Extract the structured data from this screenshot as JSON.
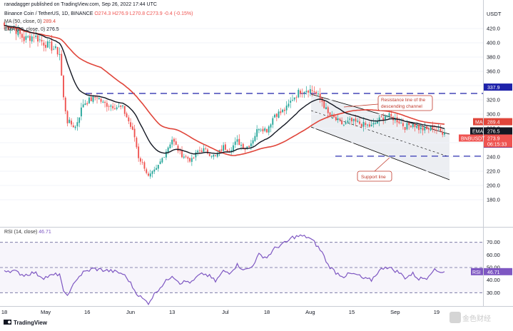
{
  "header": {
    "author_time": "ranadagger published on TradingView.com, Sep 26, 2022 17:44 UTC",
    "symbol": "Binance Coin / TetherUS, 1D, BINANCE",
    "ohlc": "O274.3 H276.9 L270.8 C273.9 -0.4 (-0.15%)",
    "ma_label": "MA (50, close, 0)",
    "ma_value": "289.4",
    "ema_label": "EMA (20, close, 0)",
    "ema_value": "276.5",
    "rsi_label": "RSI (14, close)",
    "rsi_value": "46.71"
  },
  "footer": {
    "brand": "TradingView",
    "watermark": "金色财经"
  },
  "colors": {
    "up": "#26a69a",
    "down": "#ef5350",
    "ma": "#e0453a",
    "ema": "#131722",
    "rsi": "#7e57c2",
    "level": "#1e22aa",
    "channel": "#000000"
  },
  "chart_data": [
    {
      "type": "candlestick",
      "title": "",
      "ylabel": "USDT",
      "ylim": [
        160,
        440
      ],
      "yticks": [
        180.0,
        200.0,
        220.0,
        240.0,
        260.0,
        280.0,
        300.0,
        320.0,
        340.0,
        360.0,
        380.0,
        400.0,
        420.0
      ],
      "xtick_labels": [
        "18",
        "May",
        "16",
        "Jun",
        "13",
        "Jul",
        "18",
        "Aug",
        "15",
        "Sep",
        "19"
      ],
      "levels": [
        {
          "label": "337.9",
          "value": 337.9
        },
        {
          "label": "258.0",
          "value": 258.0
        }
      ],
      "price_tags": [
        {
          "name": "MA",
          "value": 289.4,
          "text": "289.4"
        },
        {
          "name": "EMA",
          "value": 276.5,
          "text": "276.5"
        },
        {
          "name": "BNBUSDT",
          "value": 273.9,
          "text": "273.9",
          "sub": "06:15:33"
        }
      ],
      "annotations": [
        {
          "text": "Resistance line of the descending channel"
        },
        {
          "text": "Support line"
        }
      ],
      "series": [
        {
          "name": "MA",
          "values": []
        },
        {
          "name": "EMA",
          "values": []
        }
      ],
      "close_anchors": [
        [
          0,
          424
        ],
        [
          5,
          421
        ],
        [
          10,
          405
        ],
        [
          15,
          410
        ],
        [
          20,
          400
        ],
        [
          25,
          392
        ],
        [
          28,
          385
        ],
        [
          30,
          322
        ],
        [
          32,
          290
        ],
        [
          36,
          282
        ],
        [
          40,
          315
        ],
        [
          45,
          322
        ],
        [
          47,
          325
        ],
        [
          50,
          315
        ],
        [
          55,
          312
        ],
        [
          60,
          308
        ],
        [
          63,
          290
        ],
        [
          66,
          268
        ],
        [
          68,
          240
        ],
        [
          71,
          226
        ],
        [
          73,
          212
        ],
        [
          77,
          222
        ],
        [
          80,
          238
        ],
        [
          85,
          265
        ],
        [
          89,
          245
        ],
        [
          93,
          238
        ],
        [
          95,
          235
        ],
        [
          98,
          248
        ],
        [
          101,
          250
        ],
        [
          104,
          245
        ],
        [
          107,
          240
        ],
        [
          111,
          254
        ],
        [
          114,
          250
        ],
        [
          118,
          262
        ],
        [
          122,
          252
        ],
        [
          125,
          260
        ],
        [
          129,
          282
        ],
        [
          133,
          278
        ],
        [
          137,
          300
        ],
        [
          140,
          302
        ],
        [
          143,
          308
        ],
        [
          146,
          322
        ],
        [
          150,
          333
        ],
        [
          154,
          335
        ],
        [
          157,
          332
        ],
        [
          161,
          318
        ],
        [
          164,
          300
        ],
        [
          168,
          292
        ],
        [
          172,
          285
        ],
        [
          175,
          290
        ],
        [
          179,
          288
        ],
        [
          182,
          285
        ],
        [
          186,
          283
        ],
        [
          189,
          290
        ],
        [
          193,
          298
        ],
        [
          196,
          296
        ],
        [
          200,
          290
        ],
        [
          203,
          282
        ],
        [
          207,
          287
        ],
        [
          210,
          280
        ],
        [
          214,
          278
        ],
        [
          217,
          282
        ],
        [
          220,
          276
        ],
        [
          223,
          274
        ]
      ],
      "last_close": 273.9
    },
    {
      "type": "line",
      "title": "",
      "series_label": "RSI",
      "ylim": [
        20,
        80
      ],
      "yticks": [
        30.0,
        40.0,
        50.0,
        60.0,
        70.0
      ],
      "bands": [
        30,
        50,
        70
      ],
      "anchors": [
        [
          0,
          48
        ],
        [
          5,
          47
        ],
        [
          10,
          44
        ],
        [
          15,
          46
        ],
        [
          20,
          42
        ],
        [
          28,
          45
        ],
        [
          30,
          30
        ],
        [
          33,
          29
        ],
        [
          36,
          40
        ],
        [
          40,
          46
        ],
        [
          45,
          49
        ],
        [
          50,
          48
        ],
        [
          55,
          47
        ],
        [
          60,
          45
        ],
        [
          63,
          40
        ],
        [
          66,
          32
        ],
        [
          68,
          28
        ],
        [
          71,
          24
        ],
        [
          73,
          22
        ],
        [
          77,
          31
        ],
        [
          80,
          36
        ],
        [
          85,
          44
        ],
        [
          89,
          38
        ],
        [
          93,
          39
        ],
        [
          95,
          38
        ],
        [
          98,
          43
        ],
        [
          101,
          45
        ],
        [
          104,
          43
        ],
        [
          107,
          39
        ],
        [
          111,
          47
        ],
        [
          114,
          46
        ],
        [
          118,
          52
        ],
        [
          122,
          48
        ],
        [
          125,
          50
        ],
        [
          129,
          60
        ],
        [
          133,
          58
        ],
        [
          137,
          65
        ],
        [
          140,
          68
        ],
        [
          143,
          70
        ],
        [
          146,
          74
        ],
        [
          150,
          75
        ],
        [
          154,
          74
        ],
        [
          157,
          70
        ],
        [
          161,
          62
        ],
        [
          164,
          52
        ],
        [
          168,
          46
        ],
        [
          172,
          43
        ],
        [
          175,
          45
        ],
        [
          179,
          44
        ],
        [
          182,
          41
        ],
        [
          186,
          40
        ],
        [
          189,
          46
        ],
        [
          193,
          51
        ],
        [
          196,
          49
        ],
        [
          200,
          46
        ],
        [
          203,
          42
        ],
        [
          207,
          45
        ],
        [
          210,
          41
        ],
        [
          214,
          42
        ],
        [
          217,
          48
        ],
        [
          220,
          47
        ],
        [
          223,
          46.71
        ]
      ],
      "last_value": 46.71
    }
  ]
}
